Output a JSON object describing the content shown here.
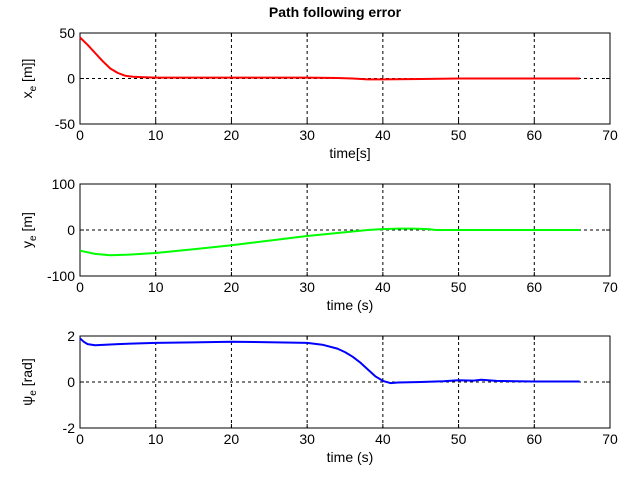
{
  "title": "Path following error",
  "chart_data": [
    {
      "type": "line",
      "ylabel_main": "x",
      "ylabel_sub": "e",
      "ylabel_tail": " [m]]",
      "xlabel": "time[s]",
      "xlim": [
        0,
        70
      ],
      "ylim": [
        -50,
        50
      ],
      "xticks": [
        0,
        10,
        20,
        30,
        40,
        50,
        60,
        70
      ],
      "yticks": [
        -50,
        0,
        50
      ],
      "grid": true,
      "color": "#ff0000",
      "series": [
        {
          "x": [
            0,
            1,
            2,
            3,
            4,
            5,
            6,
            7,
            8,
            10,
            15,
            20,
            25,
            30,
            34,
            36,
            38,
            40,
            45,
            50,
            55,
            60,
            66
          ],
          "values": [
            45,
            37,
            28,
            19,
            11,
            6,
            3,
            2,
            1.5,
            1,
            1,
            1,
            1,
            1,
            0.5,
            0,
            -1,
            -1,
            -0.5,
            0,
            0,
            0,
            0
          ]
        }
      ]
    },
    {
      "type": "line",
      "ylabel_main": "y",
      "ylabel_sub": "e",
      "ylabel_tail": " [m]",
      "xlabel": "time (s)",
      "xlim": [
        0,
        70
      ],
      "ylim": [
        -100,
        100
      ],
      "xticks": [
        0,
        10,
        20,
        30,
        40,
        50,
        60,
        70
      ],
      "yticks": [
        -100,
        0,
        100
      ],
      "grid": true,
      "color": "#00ff00",
      "series": [
        {
          "x": [
            0,
            2,
            4,
            6,
            10,
            15,
            20,
            25,
            30,
            35,
            38,
            40,
            42,
            44,
            46,
            47,
            50,
            55,
            60,
            66
          ],
          "values": [
            -45,
            -52,
            -55,
            -54,
            -50,
            -42,
            -33,
            -23,
            -13,
            -5,
            0,
            2,
            3,
            3,
            2,
            0,
            0,
            0,
            0,
            0
          ]
        }
      ]
    },
    {
      "type": "line",
      "ylabel_main": "ψ",
      "ylabel_sub": "e",
      "ylabel_tail": " [rad]",
      "xlabel": "time (s)",
      "xlim": [
        0,
        70
      ],
      "ylim": [
        -2,
        2
      ],
      "xticks": [
        0,
        10,
        20,
        30,
        40,
        50,
        60,
        70
      ],
      "yticks": [
        -2,
        0,
        2
      ],
      "grid": true,
      "color": "#0000ff",
      "series": [
        {
          "x": [
            0,
            0.5,
            1,
            2,
            5,
            10,
            15,
            20,
            25,
            30,
            32,
            34,
            35,
            36,
            37,
            38,
            39,
            40,
            41,
            42,
            45,
            48,
            50,
            52,
            53,
            55,
            60,
            66
          ],
          "values": [
            1.9,
            1.75,
            1.65,
            1.6,
            1.65,
            1.7,
            1.72,
            1.75,
            1.73,
            1.7,
            1.62,
            1.45,
            1.3,
            1.1,
            0.85,
            0.55,
            0.25,
            0.05,
            -0.05,
            -0.02,
            0,
            0.03,
            0.08,
            0.06,
            0.1,
            0.05,
            0.02,
            0.02
          ]
        }
      ]
    }
  ]
}
